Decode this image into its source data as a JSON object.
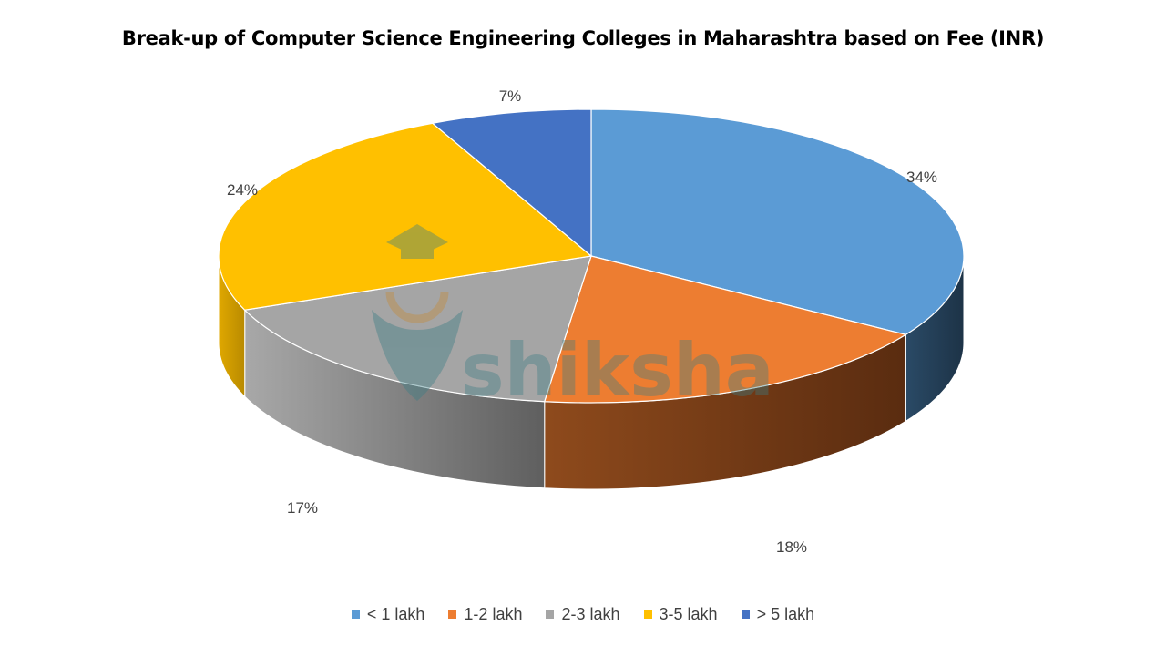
{
  "chart_data": {
    "type": "pie",
    "title": "Break-up of Computer Science Engineering Colleges in Maharashtra based on Fee (INR)",
    "slices": [
      {
        "label": "< 1 lakh",
        "value": 34,
        "display": "34%",
        "color": "#5B9BD5"
      },
      {
        "label": "1-2 lakh",
        "value": 18,
        "display": "18%",
        "color": "#ED7D31"
      },
      {
        "label": "2-3 lakh",
        "value": 17,
        "display": "17%",
        "color": "#A5A5A5"
      },
      {
        "label": "3-5 lakh",
        "value": 24,
        "display": "24%",
        "color": "#FFC000"
      },
      {
        "label": "> 5 lakh",
        "value": 7,
        "display": "7%",
        "color": "#4472C4"
      }
    ],
    "legend_position": "bottom",
    "three_d": true
  },
  "watermark": {
    "text": "shiksha",
    "icon": "graduation-cap-icon"
  }
}
